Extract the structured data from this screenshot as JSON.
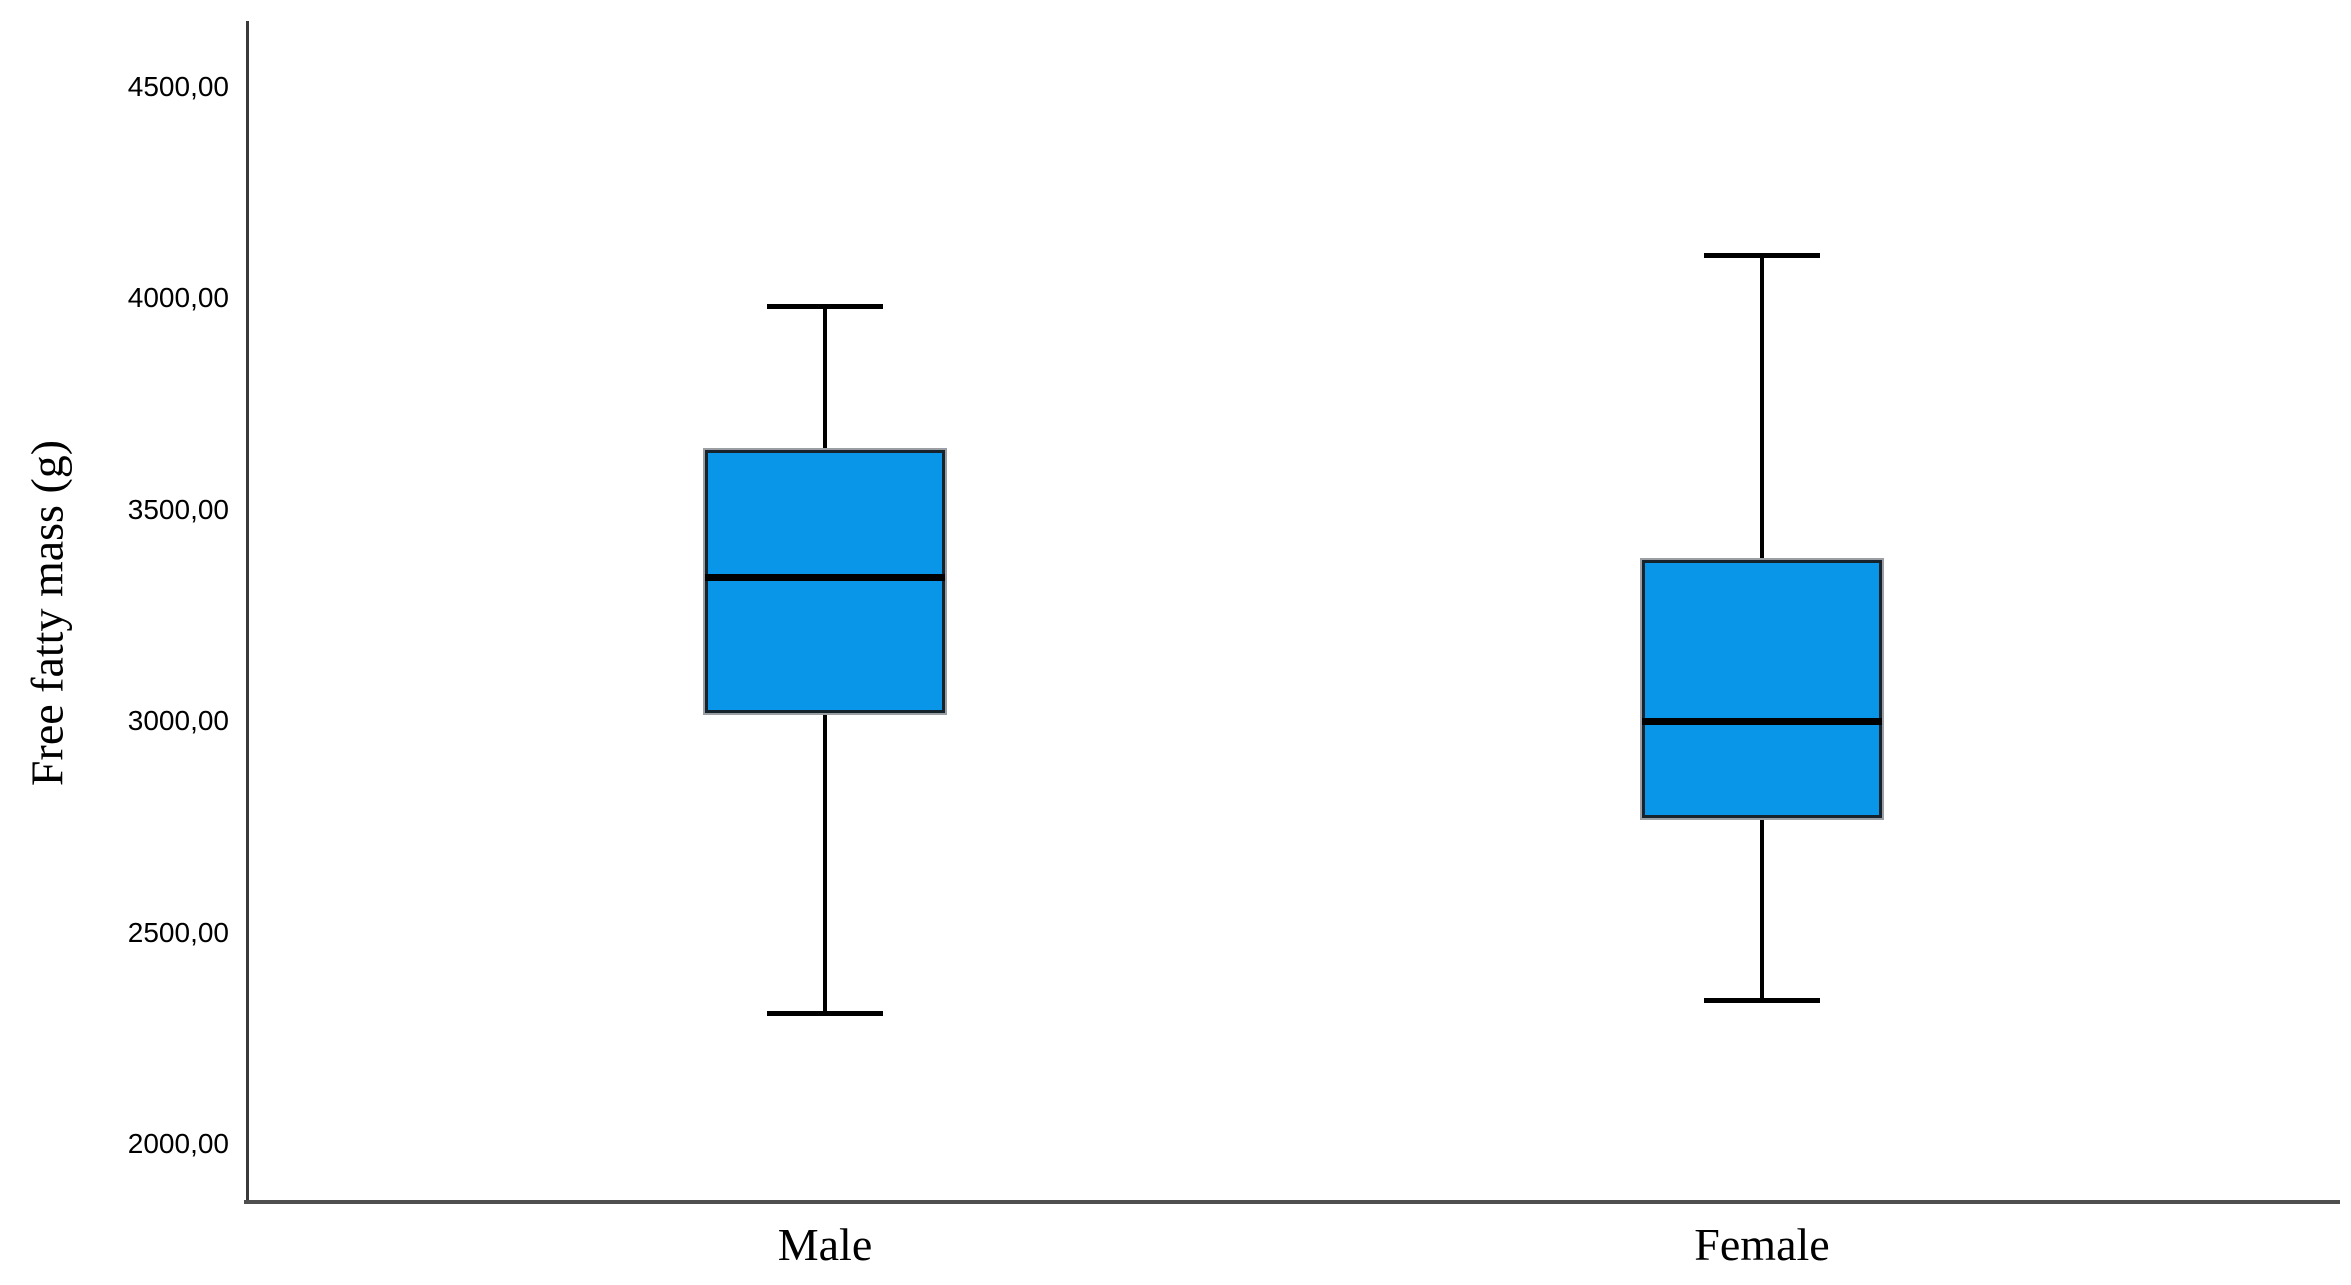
{
  "chart_data": {
    "type": "boxplot",
    "title": "",
    "ylabel": "Free fatty mass (g)",
    "xlabel": "",
    "categories": [
      "Male",
      "Female"
    ],
    "series": [
      {
        "name": "Male",
        "min": 2310,
        "q1": 3020,
        "median": 3340,
        "q3": 3640,
        "max": 3980
      },
      {
        "name": "Female",
        "min": 2340,
        "q1": 2770,
        "median": 3000,
        "q3": 3380,
        "max": 4100
      }
    ],
    "y_ticks": [
      {
        "label": "4500,00",
        "value": 4500
      },
      {
        "label": "4000,00",
        "value": 4000
      },
      {
        "label": "3500,00",
        "value": 3500
      },
      {
        "label": "3000,00",
        "value": 3000
      },
      {
        "label": "2500,00",
        "value": 2500
      },
      {
        "label": "2000,00",
        "value": 2000
      }
    ],
    "ylim": [
      1868,
      4655
    ],
    "grid": false,
    "legend": false,
    "decimal_separator": ",",
    "colors": {
      "box_fill": "#0a96e8",
      "box_border": "#16232d",
      "box_halo": "#9b9fa3",
      "median": "#000000",
      "whisker": "#000000",
      "y_axis": "#3a3a3a",
      "x_axis": "#4f4f4f",
      "text": "#000000",
      "background": "#ffffff"
    }
  }
}
